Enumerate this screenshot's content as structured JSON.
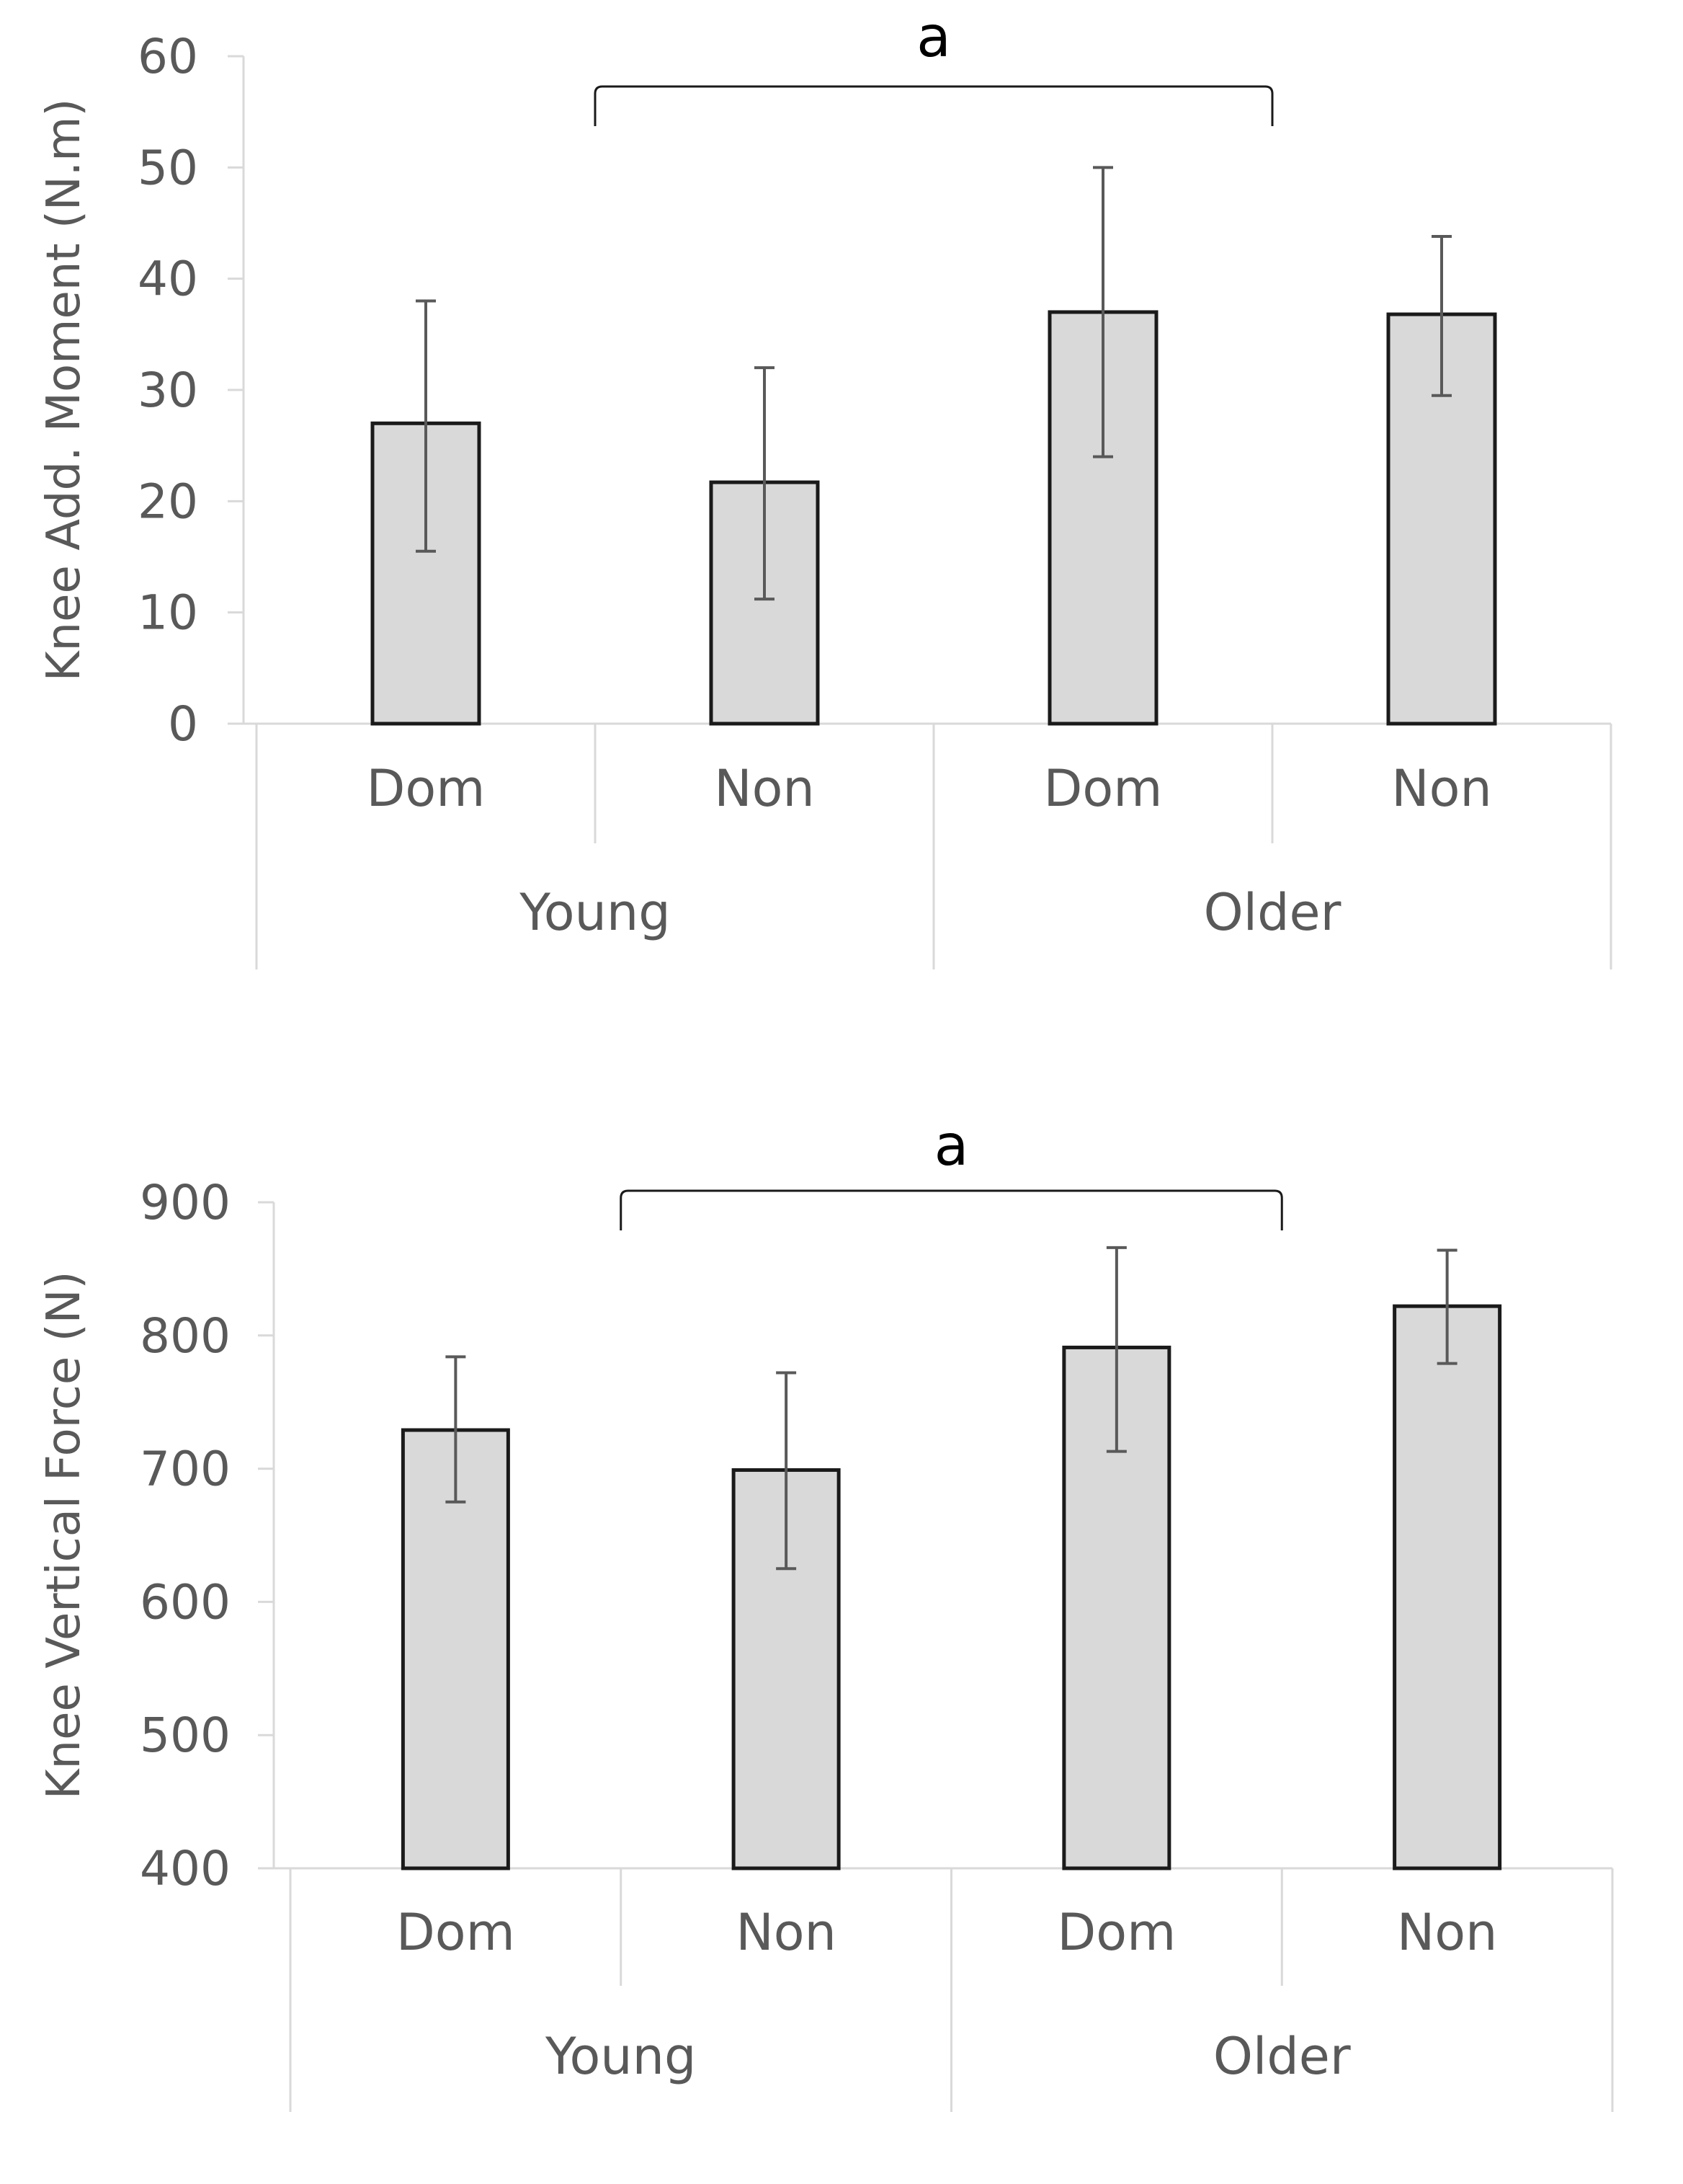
{
  "chart_data": [
    {
      "type": "bar",
      "ylabel": "Knee Add. Moment (N.m)",
      "ylim": [
        0,
        60
      ],
      "yticks": [
        0,
        10,
        20,
        30,
        40,
        50,
        60
      ],
      "categories": [
        "Dom",
        "Non",
        "Dom",
        "Non"
      ],
      "groups": [
        "Young",
        "Older"
      ],
      "values": [
        27,
        21.7,
        37,
        36.8
      ],
      "err_low": [
        15.5,
        11.2,
        24,
        29.5
      ],
      "err_high": [
        38,
        32,
        50,
        43.8
      ],
      "annotation": "a",
      "bar_fill": "#d9d9d9",
      "bar_edge": "#1a1a1a"
    },
    {
      "type": "bar",
      "ylabel": "Knee Vertical Force (N)",
      "ylim": [
        400,
        900
      ],
      "yticks": [
        400,
        500,
        600,
        700,
        800,
        900
      ],
      "categories": [
        "Dom",
        "Non",
        "Dom",
        "Non"
      ],
      "groups": [
        "Young",
        "Older"
      ],
      "values": [
        729,
        699,
        791,
        822
      ],
      "err_low": [
        675,
        625,
        713,
        779
      ],
      "err_high": [
        784,
        772,
        866,
        864
      ],
      "annotation": "a",
      "bar_fill": "#d9d9d9",
      "bar_edge": "#1a1a1a"
    }
  ]
}
